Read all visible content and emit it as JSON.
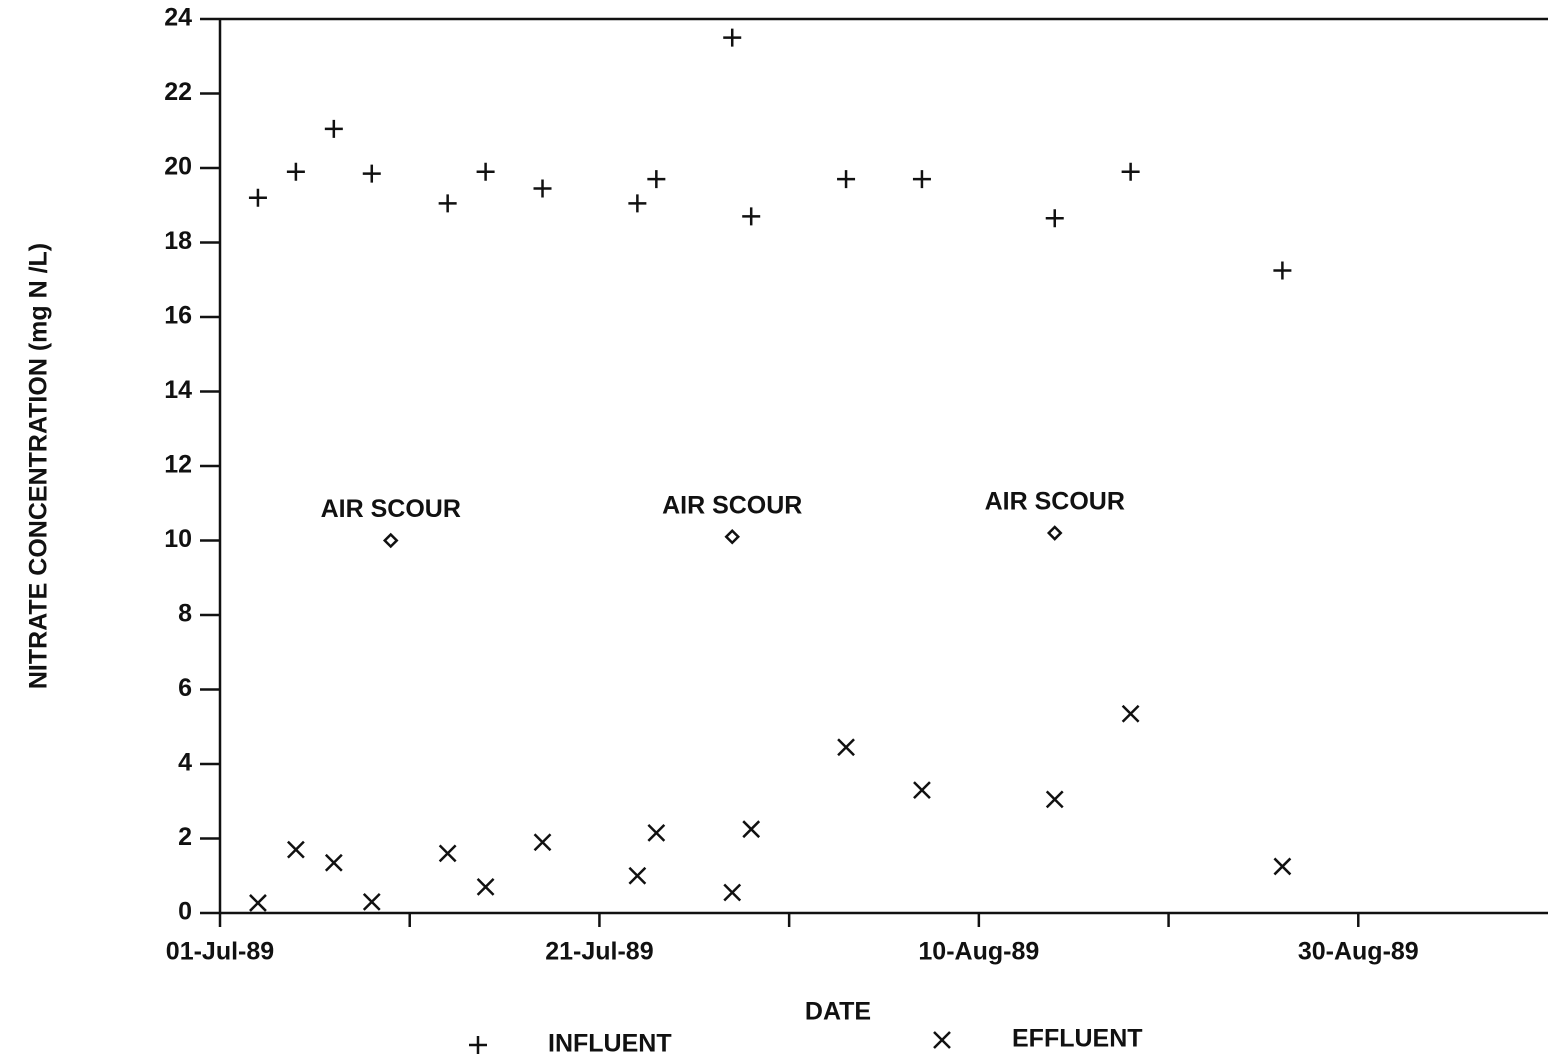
{
  "chart_data": {
    "type": "scatter",
    "xlabel": "DATE",
    "ylabel": "NITRATE CONCENTRATION (mg N /L)",
    "xlim": [
      "1989-07-01",
      "1989-09-09"
    ],
    "xticks": [
      {
        "value": "1989-07-01",
        "label": "01-Jul-89"
      },
      {
        "value": "1989-07-21",
        "label": "21-Jul-89"
      },
      {
        "value": "1989-08-10",
        "label": "10-Aug-89"
      },
      {
        "value": "1989-08-30",
        "label": "30-Aug-89"
      }
    ],
    "xminor_ticks": [
      "1989-07-11",
      "1989-07-31",
      "1989-08-20"
    ],
    "ylim": [
      0,
      24
    ],
    "yticks": [
      0,
      2,
      4,
      6,
      8,
      10,
      12,
      14,
      16,
      18,
      20,
      22,
      24
    ],
    "legend": "bottom",
    "series": [
      {
        "name": "INFLUENT",
        "marker": "plus",
        "color": "#000000",
        "x": [
          "1989-07-03",
          "1989-07-05",
          "1989-07-07",
          "1989-07-09",
          "1989-07-13",
          "1989-07-15",
          "1989-07-18",
          "1989-07-23",
          "1989-07-24",
          "1989-07-28",
          "1989-07-29",
          "1989-08-03",
          "1989-08-07",
          "1989-08-14",
          "1989-08-18",
          "1989-08-26"
        ],
        "values": [
          19.2,
          19.9,
          21.05,
          19.85,
          19.05,
          19.9,
          19.45,
          19.05,
          19.7,
          23.5,
          18.7,
          19.7,
          19.7,
          18.65,
          19.9,
          17.25
        ]
      },
      {
        "name": "EFFLUENT",
        "marker": "cross",
        "color": "#000000",
        "x": [
          "1989-07-03",
          "1989-07-05",
          "1989-07-07",
          "1989-07-09",
          "1989-07-13",
          "1989-07-15",
          "1989-07-18",
          "1989-07-23",
          "1989-07-24",
          "1989-07-28",
          "1989-07-29",
          "1989-08-03",
          "1989-08-07",
          "1989-08-14",
          "1989-08-18",
          "1989-08-26"
        ],
        "values": [
          0.27,
          1.7,
          1.35,
          0.3,
          1.6,
          0.7,
          1.9,
          1.0,
          2.15,
          0.55,
          2.25,
          4.45,
          3.3,
          3.05,
          5.35,
          1.25
        ]
      }
    ],
    "annotations": [
      {
        "text": "AIR SCOUR",
        "x": "1989-07-10",
        "y": 10.0
      },
      {
        "text": "AIR SCOUR",
        "x": "1989-07-28",
        "y": 10.1
      },
      {
        "text": "AIR SCOUR",
        "x": "1989-08-14",
        "y": 10.2
      }
    ]
  }
}
